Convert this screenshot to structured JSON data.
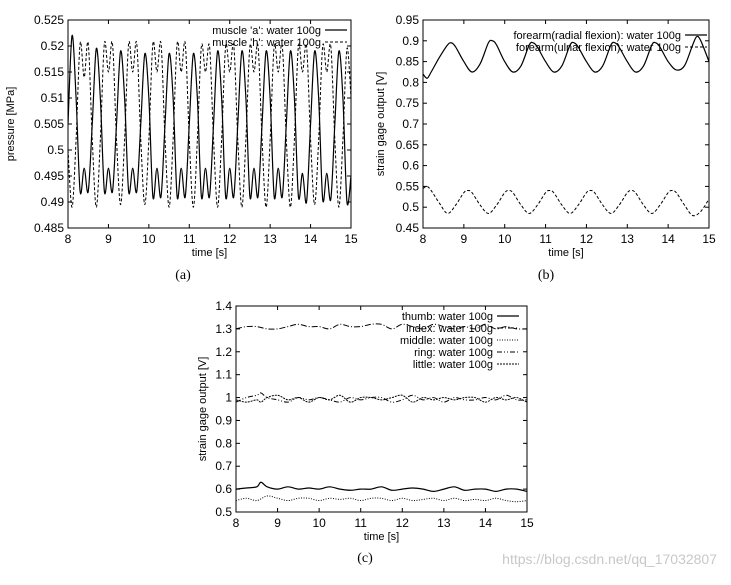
{
  "watermark": "https://blog.csdn.net/qq_17032807",
  "chart_data": [
    {
      "id": "a",
      "type": "line",
      "caption": "(a)",
      "xlabel": "time [s]",
      "ylabel": "pressure [MPa]",
      "xlim": [
        8,
        15
      ],
      "ylim": [
        0.485,
        0.525
      ],
      "xticks": [
        8,
        9,
        10,
        11,
        12,
        13,
        14,
        15
      ],
      "yticks": [
        0.485,
        0.49,
        0.495,
        0.5,
        0.505,
        0.51,
        0.515,
        0.52,
        0.525
      ],
      "ytick_labels": [
        "0.485",
        "0.49",
        "0.495",
        "0.5",
        "0.505",
        "0.51",
        "0.515",
        "0.52",
        "0.525"
      ],
      "legend_position": "top-right",
      "series": [
        {
          "name": "muscle 'a': water 100g",
          "dash": "solid",
          "x": [
            8.0,
            8.1,
            8.2,
            8.3,
            8.4,
            8.5,
            8.6,
            8.7,
            8.8,
            8.9,
            9.0,
            9.1,
            9.2,
            9.3,
            9.4,
            9.5,
            9.6,
            9.7,
            9.8,
            9.9,
            10.0,
            10.1,
            10.2,
            10.3,
            10.4,
            10.5,
            10.6,
            10.7,
            10.8,
            10.9,
            11.0,
            11.1,
            11.2,
            11.3,
            11.4,
            11.5,
            11.6,
            11.7,
            11.8,
            11.9,
            12.0,
            12.1,
            12.2,
            12.3,
            12.4,
            12.5,
            12.6,
            12.7,
            12.8,
            12.9,
            13.0,
            13.1,
            13.2,
            13.3,
            13.4,
            13.5,
            13.6,
            13.7,
            13.8,
            13.9,
            14.0,
            14.1,
            14.2,
            14.3,
            14.4,
            14.5,
            14.6,
            14.7,
            14.8,
            14.9,
            15.0
          ],
          "y": [
            0.505,
            0.522,
            0.51,
            0.492,
            0.4965,
            0.492,
            0.505,
            0.5195,
            0.51,
            0.492,
            0.4965,
            0.492,
            0.505,
            0.519,
            0.51,
            0.492,
            0.4965,
            0.492,
            0.505,
            0.5185,
            0.51,
            0.491,
            0.4965,
            0.491,
            0.505,
            0.5185,
            0.51,
            0.491,
            0.4965,
            0.491,
            0.505,
            0.5185,
            0.51,
            0.491,
            0.4965,
            0.491,
            0.505,
            0.519,
            0.51,
            0.491,
            0.4965,
            0.491,
            0.505,
            0.519,
            0.51,
            0.491,
            0.4965,
            0.491,
            0.505,
            0.519,
            0.51,
            0.491,
            0.4965,
            0.491,
            0.505,
            0.519,
            0.51,
            0.491,
            0.4955,
            0.49,
            0.505,
            0.519,
            0.51,
            0.4905,
            0.4955,
            0.4905,
            0.505,
            0.519,
            0.51,
            0.49,
            0.495
          ]
        },
        {
          "name": "muscle 'h': water 100g",
          "dash": "dashed",
          "x": [
            8.0,
            8.1,
            8.2,
            8.3,
            8.4,
            8.5,
            8.6,
            8.7,
            8.8,
            8.9,
            9.0,
            9.1,
            9.2,
            9.3,
            9.4,
            9.5,
            9.6,
            9.7,
            9.8,
            9.9,
            10.0,
            10.1,
            10.2,
            10.3,
            10.4,
            10.5,
            10.6,
            10.7,
            10.8,
            10.9,
            11.0,
            11.1,
            11.2,
            11.3,
            11.4,
            11.5,
            11.6,
            11.7,
            11.8,
            11.9,
            12.0,
            12.1,
            12.2,
            12.3,
            12.4,
            12.5,
            12.6,
            12.7,
            12.8,
            12.9,
            13.0,
            13.1,
            13.2,
            13.3,
            13.4,
            13.5,
            13.6,
            13.7,
            13.8,
            13.9,
            14.0,
            14.1,
            14.2,
            14.3,
            14.4,
            14.5,
            14.6,
            14.7,
            14.8,
            14.9,
            15.0
          ],
          "y": [
            0.5,
            0.489,
            0.502,
            0.5205,
            0.514,
            0.5205,
            0.502,
            0.489,
            0.502,
            0.5205,
            0.515,
            0.5205,
            0.502,
            0.4895,
            0.502,
            0.5205,
            0.515,
            0.5205,
            0.502,
            0.4895,
            0.502,
            0.5205,
            0.515,
            0.5205,
            0.502,
            0.489,
            0.502,
            0.5205,
            0.515,
            0.5205,
            0.502,
            0.489,
            0.502,
            0.52,
            0.515,
            0.52,
            0.502,
            0.489,
            0.502,
            0.52,
            0.515,
            0.52,
            0.502,
            0.489,
            0.502,
            0.52,
            0.515,
            0.52,
            0.502,
            0.489,
            0.502,
            0.52,
            0.515,
            0.52,
            0.502,
            0.489,
            0.502,
            0.52,
            0.515,
            0.52,
            0.502,
            0.4895,
            0.502,
            0.52,
            0.515,
            0.52,
            0.502,
            0.489,
            0.502,
            0.5195,
            0.51
          ]
        }
      ]
    },
    {
      "id": "b",
      "type": "line",
      "caption": "(b)",
      "xlabel": "time [s]",
      "ylabel": "strain gage output [V]",
      "xlim": [
        8,
        15
      ],
      "ylim": [
        0.45,
        0.95
      ],
      "xticks": [
        8,
        9,
        10,
        11,
        12,
        13,
        14,
        15
      ],
      "yticks": [
        0.45,
        0.5,
        0.55,
        0.6,
        0.65,
        0.7,
        0.75,
        0.8,
        0.85,
        0.9,
        0.95
      ],
      "ytick_labels": [
        "0.45",
        "0.5",
        "0.55",
        "0.6",
        "0.65",
        "0.7",
        "0.75",
        "0.8",
        "0.85",
        "0.9",
        "0.95"
      ],
      "legend_position": "top-right",
      "series": [
        {
          "name": "forearm(radial flexion): water 100g",
          "dash": "solid",
          "x": [
            8.0,
            8.1,
            8.2,
            8.4,
            8.6,
            8.7,
            8.8,
            9.0,
            9.2,
            9.4,
            9.6,
            9.7,
            9.8,
            10.0,
            10.2,
            10.4,
            10.6,
            10.7,
            10.8,
            11.0,
            11.2,
            11.4,
            11.6,
            11.7,
            11.8,
            12.0,
            12.2,
            12.4,
            12.6,
            12.7,
            12.8,
            13.0,
            13.2,
            13.4,
            13.6,
            13.7,
            13.8,
            14.0,
            14.2,
            14.4,
            14.6,
            14.7,
            14.8,
            15.0
          ],
          "x_note": "",
          "y": [
            0.82,
            0.81,
            0.825,
            0.86,
            0.89,
            0.895,
            0.885,
            0.85,
            0.825,
            0.845,
            0.895,
            0.9,
            0.89,
            0.85,
            0.825,
            0.84,
            0.89,
            0.895,
            0.885,
            0.85,
            0.825,
            0.84,
            0.89,
            0.895,
            0.885,
            0.85,
            0.825,
            0.84,
            0.89,
            0.895,
            0.885,
            0.85,
            0.825,
            0.84,
            0.89,
            0.895,
            0.885,
            0.85,
            0.83,
            0.84,
            0.89,
            0.91,
            0.9,
            0.85
          ]
        },
        {
          "name": "forearm(ulnar flexion): water 100g",
          "dash": "dashed",
          "x": [
            8.0,
            8.1,
            8.2,
            8.4,
            8.6,
            8.8,
            9.0,
            9.1,
            9.2,
            9.4,
            9.6,
            9.8,
            10.0,
            10.1,
            10.2,
            10.4,
            10.6,
            10.8,
            11.0,
            11.1,
            11.2,
            11.4,
            11.6,
            11.8,
            12.0,
            12.1,
            12.2,
            12.4,
            12.6,
            12.8,
            13.0,
            13.1,
            13.2,
            13.4,
            13.6,
            13.8,
            14.0,
            14.1,
            14.2,
            14.4,
            14.6,
            14.8,
            15.0
          ],
          "y": [
            0.545,
            0.55,
            0.54,
            0.51,
            0.485,
            0.505,
            0.535,
            0.54,
            0.535,
            0.505,
            0.485,
            0.505,
            0.535,
            0.54,
            0.535,
            0.505,
            0.485,
            0.505,
            0.535,
            0.54,
            0.535,
            0.505,
            0.485,
            0.505,
            0.535,
            0.54,
            0.535,
            0.505,
            0.485,
            0.505,
            0.535,
            0.54,
            0.535,
            0.505,
            0.485,
            0.505,
            0.535,
            0.54,
            0.535,
            0.505,
            0.48,
            0.49,
            0.52
          ]
        }
      ]
    },
    {
      "id": "c",
      "type": "line",
      "caption": "(c)",
      "xlabel": "time [s]",
      "ylabel": "strain gage output [V]",
      "xlim": [
        8,
        15
      ],
      "ylim": [
        0.5,
        1.4
      ],
      "xticks": [
        8,
        9,
        10,
        11,
        12,
        13,
        14,
        15
      ],
      "yticks": [
        0.5,
        0.6,
        0.7,
        0.8,
        0.9,
        1.0,
        1.1,
        1.2,
        1.3,
        1.4
      ],
      "ytick_labels": [
        "0.5",
        "0.6",
        "0.7",
        "0.8",
        "0.9",
        "1",
        "1.1",
        "1.2",
        "1.3",
        "1.4"
      ],
      "legend_position": "top-right",
      "series": [
        {
          "name": "thumb: water 100g",
          "dash": "solid",
          "x": [
            8.0,
            8.25,
            8.5,
            8.6,
            8.75,
            9.0,
            9.25,
            9.5,
            9.75,
            10.0,
            10.25,
            10.5,
            10.75,
            11.0,
            11.25,
            11.5,
            11.75,
            12.0,
            12.25,
            12.5,
            12.75,
            13.0,
            13.25,
            13.5,
            13.75,
            14.0,
            14.25,
            14.5,
            14.75,
            15.0
          ],
          "y": [
            0.6,
            0.605,
            0.61,
            0.63,
            0.61,
            0.6,
            0.61,
            0.6,
            0.605,
            0.6,
            0.61,
            0.6,
            0.595,
            0.6,
            0.6,
            0.61,
            0.595,
            0.6,
            0.605,
            0.6,
            0.59,
            0.6,
            0.61,
            0.595,
            0.6,
            0.6,
            0.59,
            0.6,
            0.6,
            0.59
          ]
        },
        {
          "name": "index: water 100g",
          "dash": "dashdot",
          "x": [
            8.0,
            8.25,
            8.5,
            8.75,
            9.0,
            9.25,
            9.5,
            9.75,
            10.0,
            10.25,
            10.5,
            10.75,
            11.0,
            11.25,
            11.5,
            11.75,
            12.0,
            12.25,
            12.5,
            12.75,
            13.0,
            13.25,
            13.5,
            13.75,
            14.0,
            14.25,
            14.5,
            14.75,
            15.0
          ],
          "y": [
            1.3,
            1.31,
            1.31,
            1.3,
            1.3,
            1.31,
            1.32,
            1.31,
            1.31,
            1.3,
            1.32,
            1.31,
            1.31,
            1.32,
            1.32,
            1.3,
            1.32,
            1.31,
            1.3,
            1.32,
            1.31,
            1.3,
            1.31,
            1.3,
            1.32,
            1.3,
            1.31,
            1.3,
            1.3
          ]
        },
        {
          "name": "middle: water 100g",
          "dash": "dotted",
          "x": [
            8.0,
            8.25,
            8.5,
            8.75,
            9.0,
            9.25,
            9.5,
            9.75,
            10.0,
            10.25,
            10.5,
            10.75,
            11.0,
            11.25,
            11.5,
            11.75,
            12.0,
            12.25,
            12.5,
            12.75,
            13.0,
            13.25,
            13.5,
            13.75,
            14.0,
            14.25,
            14.5,
            14.75,
            15.0
          ],
          "y": [
            0.55,
            0.56,
            0.55,
            0.57,
            0.56,
            0.55,
            0.56,
            0.56,
            0.55,
            0.56,
            0.555,
            0.56,
            0.55,
            0.56,
            0.56,
            0.55,
            0.56,
            0.55,
            0.555,
            0.56,
            0.55,
            0.56,
            0.55,
            0.555,
            0.55,
            0.56,
            0.55,
            0.545,
            0.55
          ]
        },
        {
          "name": "ring: water 100g",
          "dash": "dashdotdot",
          "x": [
            8.0,
            8.25,
            8.5,
            8.6,
            8.75,
            9.0,
            9.25,
            9.5,
            9.75,
            10.0,
            10.25,
            10.5,
            10.75,
            11.0,
            11.25,
            11.5,
            11.75,
            12.0,
            12.25,
            12.5,
            12.75,
            13.0,
            13.25,
            13.5,
            13.75,
            14.0,
            14.25,
            14.5,
            14.75,
            15.0
          ],
          "y": [
            0.98,
            1.0,
            1.01,
            1.02,
            1.0,
            0.99,
            0.98,
            1.0,
            0.99,
            1.0,
            0.99,
            0.98,
            1.0,
            0.99,
            1.0,
            1.0,
            0.98,
            0.99,
            1.01,
            0.99,
            1.0,
            0.98,
            1.0,
            0.99,
            0.99,
            1.0,
            0.99,
            1.01,
            0.99,
            0.99
          ]
        },
        {
          "name": "little: water 100g",
          "dash": "fine",
          "x": [
            8.0,
            8.25,
            8.5,
            8.6,
            8.75,
            9.0,
            9.25,
            9.5,
            9.75,
            10.0,
            10.25,
            10.5,
            10.75,
            11.0,
            11.25,
            11.5,
            11.75,
            12.0,
            12.25,
            12.5,
            12.75,
            13.0,
            13.25,
            13.5,
            13.75,
            14.0,
            14.25,
            14.5,
            14.75,
            15.0
          ],
          "y": [
            0.99,
            0.98,
            0.99,
            0.98,
            1.0,
            1.01,
            0.99,
            1.0,
            0.98,
            1.0,
            0.99,
            1.01,
            0.98,
            1.0,
            1.0,
            0.99,
            1.0,
            1.01,
            0.98,
            1.0,
            0.99,
            1.0,
            0.99,
            1.0,
            1.0,
            0.98,
            1.0,
            0.99,
            1.0,
            0.98
          ]
        }
      ]
    }
  ]
}
